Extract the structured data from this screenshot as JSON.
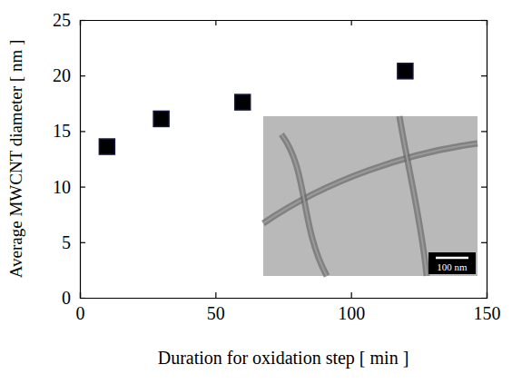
{
  "chart_data": {
    "type": "scatter",
    "x_label": "Duration for oxidation step [ min ]",
    "y_label": "Average MWCNT diameter [ nm ]",
    "x": [
      10,
      30,
      60,
      120
    ],
    "values": [
      13.6,
      16.1,
      17.6,
      20.4
    ],
    "color": "#000000",
    "marker": "square",
    "xlim": [
      0,
      150
    ],
    "xticks": [
      0,
      50,
      100,
      150
    ],
    "ylim": [
      0,
      25
    ],
    "yticks": [
      0,
      5,
      10,
      15,
      20,
      25
    ],
    "grid": false,
    "annotations": [
      "100 nm"
    ]
  }
}
